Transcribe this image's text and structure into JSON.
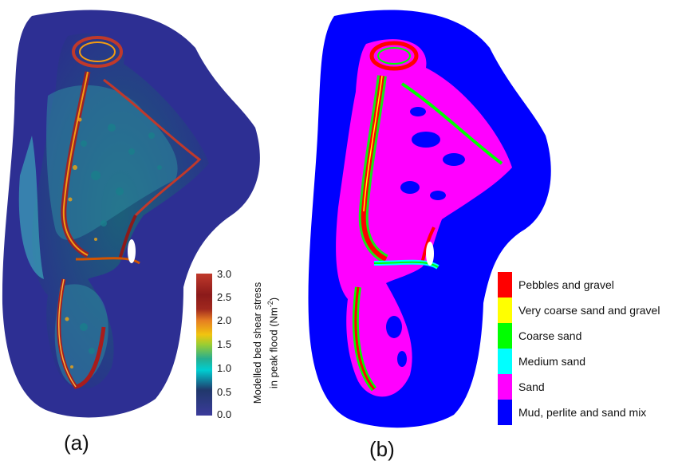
{
  "panel_a": {
    "label": "(a)",
    "colorbar": {
      "title_line1": "Modelled bed shear stress",
      "title_line2": "in peak flood (Nm",
      "title_sup": "-2",
      "title_close": ")",
      "ticks": [
        "3.0",
        "2.5",
        "2.0",
        "1.5",
        "1.0",
        "0.5",
        "0.0"
      ],
      "colors": [
        "#b22222",
        "#8b1a1a",
        "#d2691e",
        "#ffa500",
        "#9acd32",
        "#20b2aa",
        "#00ced1",
        "#1e3a6e",
        "#3b3b9b"
      ]
    }
  },
  "panel_b": {
    "label": "(b)",
    "legend": [
      {
        "label": "Pebbles and gravel",
        "color": "#ff0000"
      },
      {
        "label": "Very coarse sand and gravel",
        "color": "#ffff00"
      },
      {
        "label": "Coarse sand",
        "color": "#00ff00"
      },
      {
        "label": "Medium sand",
        "color": "#00ffff"
      },
      {
        "label": "Sand",
        "color": "#ff00ff"
      },
      {
        "label": "Mud, perlite and sand mix",
        "color": "#0000ff"
      }
    ]
  }
}
